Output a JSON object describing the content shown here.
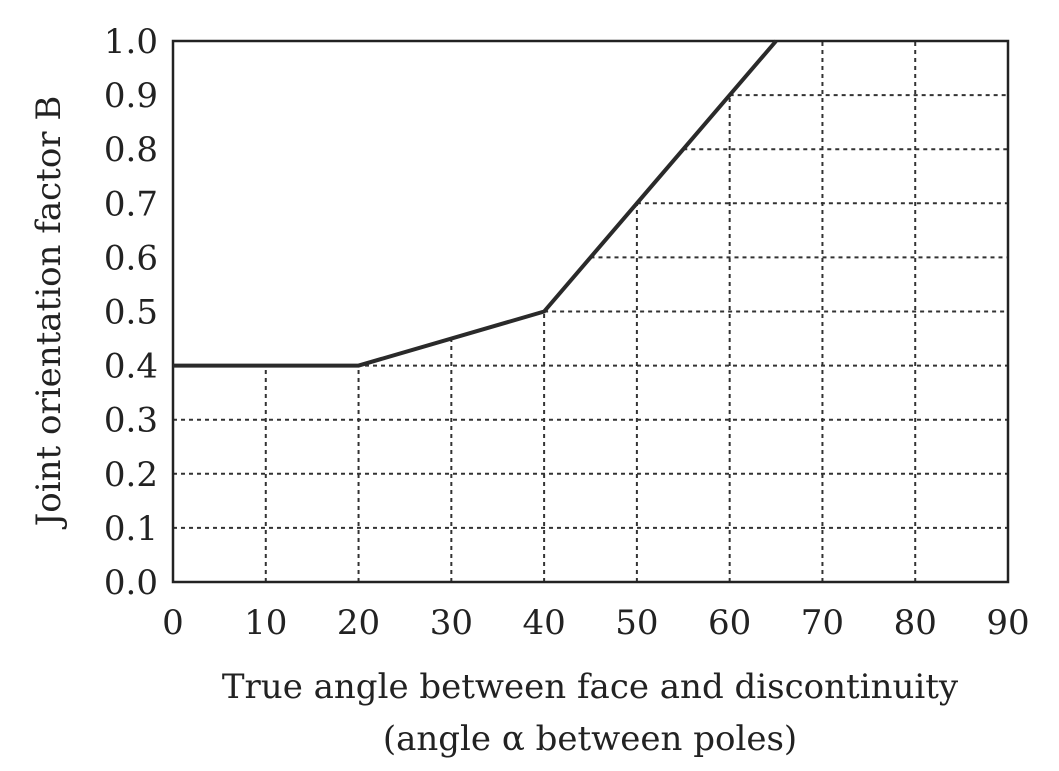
{
  "chart_data": {
    "type": "line",
    "title": "",
    "xlabel": "True angle between face and discontinuity",
    "xlabel_line2": "(angle α between poles)",
    "ylabel": "Joint orientation factor B",
    "xlim": [
      0,
      90
    ],
    "ylim": [
      0.0,
      1.0
    ],
    "x_ticks": [
      "0",
      "10",
      "20",
      "30",
      "40",
      "50",
      "60",
      "70",
      "80",
      "90"
    ],
    "y_ticks": [
      "0.0",
      "0.1",
      "0.2",
      "0.3",
      "0.4",
      "0.5",
      "0.6",
      "0.7",
      "0.8",
      "0.9",
      "1.0"
    ],
    "grid": "dashed, below the curve",
    "legend": "none",
    "series": [
      {
        "x": [
          0,
          20,
          40,
          65
        ],
        "y": [
          0.4,
          0.4,
          0.5,
          1.0
        ]
      }
    ]
  }
}
